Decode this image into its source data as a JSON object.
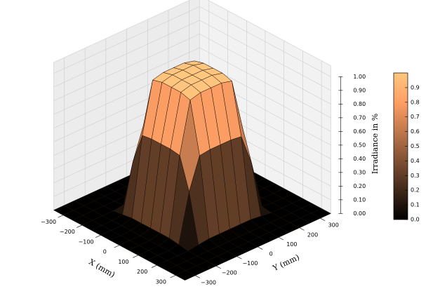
{
  "chart_data": {
    "type": "surface",
    "xlabel": "X (mm)",
    "ylabel": "Y (mm)",
    "zlabel": "Irradiance in %",
    "x": [
      -350,
      -300,
      -250,
      -200,
      -150,
      -100,
      -50,
      0,
      50,
      100,
      150,
      200,
      250,
      300,
      350
    ],
    "y": [
      -350,
      -300,
      -250,
      -200,
      -150,
      -100,
      -50,
      0,
      50,
      100,
      150,
      200,
      250,
      300,
      350
    ],
    "z": [
      [
        0,
        0,
        0,
        0,
        0,
        0,
        0,
        0,
        0,
        0,
        0,
        0,
        0,
        0,
        0
      ],
      [
        0,
        0,
        0,
        0,
        0,
        0,
        0,
        0,
        0,
        0,
        0,
        0,
        0,
        0,
        0
      ],
      [
        0,
        0,
        0,
        0,
        0,
        0,
        0,
        0,
        0,
        0,
        0,
        0,
        0,
        0,
        0
      ],
      [
        0,
        0,
        0,
        0,
        0.01,
        0.02,
        0.02,
        0.02,
        0.02,
        0.02,
        0.01,
        0,
        0,
        0,
        0
      ],
      [
        0,
        0,
        0,
        0.01,
        0.36,
        0.59,
        0.6,
        0.6,
        0.6,
        0.59,
        0.36,
        0.01,
        0,
        0,
        0
      ],
      [
        0,
        0,
        0,
        0.02,
        0.59,
        0.96,
        0.98,
        0.98,
        0.98,
        0.96,
        0.59,
        0.02,
        0,
        0,
        0
      ],
      [
        0,
        0,
        0,
        0.02,
        0.6,
        0.98,
        1,
        1,
        1,
        0.98,
        0.6,
        0.02,
        0,
        0,
        0
      ],
      [
        0,
        0,
        0,
        0.02,
        0.6,
        0.98,
        1,
        1,
        1,
        0.98,
        0.6,
        0.02,
        0,
        0,
        0
      ],
      [
        0,
        0,
        0,
        0.02,
        0.6,
        0.98,
        1,
        1,
        1,
        0.98,
        0.6,
        0.02,
        0,
        0,
        0
      ],
      [
        0,
        0,
        0,
        0.02,
        0.59,
        0.96,
        0.98,
        0.98,
        0.98,
        0.96,
        0.59,
        0.02,
        0,
        0,
        0
      ],
      [
        0,
        0,
        0,
        0.01,
        0.36,
        0.59,
        0.6,
        0.6,
        0.6,
        0.59,
        0.36,
        0.01,
        0,
        0,
        0
      ],
      [
        0,
        0,
        0,
        0,
        0.01,
        0.02,
        0.02,
        0.02,
        0.02,
        0.02,
        0.01,
        0,
        0,
        0,
        0
      ],
      [
        0,
        0,
        0,
        0,
        0,
        0,
        0,
        0,
        0,
        0,
        0,
        0,
        0,
        0,
        0
      ],
      [
        0,
        0,
        0,
        0,
        0,
        0,
        0,
        0,
        0,
        0,
        0,
        0,
        0,
        0,
        0
      ],
      [
        0,
        0,
        0,
        0,
        0,
        0,
        0,
        0,
        0,
        0,
        0,
        0,
        0,
        0,
        0
      ]
    ],
    "colormap": "copper",
    "xlim": [
      -350,
      350
    ],
    "ylim": [
      -350,
      350
    ],
    "zlim": [
      0,
      1
    ],
    "xticks": [
      {
        "value": -300,
        "label": "−300"
      },
      {
        "value": -200,
        "label": "−200"
      },
      {
        "value": -100,
        "label": "−100"
      },
      0,
      100,
      200,
      300
    ],
    "yticks": [
      {
        "value": -300,
        "label": "−300"
      },
      {
        "value": -200,
        "label": "−200"
      },
      {
        "value": -100,
        "label": "−100"
      },
      0,
      100,
      200,
      300
    ],
    "zticks": [
      {
        "value": 0,
        "label": "0.00"
      },
      {
        "value": 0.1,
        "label": "0.10"
      },
      {
        "value": 0.2,
        "label": "0.20"
      },
      {
        "value": 0.3,
        "label": "0.30"
      },
      {
        "value": 0.4,
        "label": "0.40"
      },
      {
        "value": 0.5,
        "label": "0.50"
      },
      {
        "value": 0.6,
        "label": "0.60"
      },
      {
        "value": 0.7,
        "label": "0.70"
      },
      {
        "value": 0.8,
        "label": "0.80"
      },
      {
        "value": 0.9,
        "label": "0.90"
      },
      {
        "value": 1,
        "label": "1.00"
      }
    ],
    "colorbar_lim": [
      0,
      1
    ],
    "colorbar_ticks": [
      {
        "value": 0,
        "label": "0.0"
      },
      {
        "value": 0.1,
        "label": "0.1"
      },
      {
        "value": 0.2,
        "label": "0.2"
      },
      {
        "value": 0.3,
        "label": "0.3"
      },
      {
        "value": 0.4,
        "label": "0.4"
      },
      {
        "value": 0.5,
        "label": "0.5"
      },
      {
        "value": 0.6,
        "label": "0.6"
      },
      {
        "value": 0.7,
        "label": "0.7"
      },
      {
        "value": 0.8,
        "label": "0.8"
      },
      {
        "value": 0.9,
        "label": "0.9"
      }
    ],
    "grid": true
  }
}
